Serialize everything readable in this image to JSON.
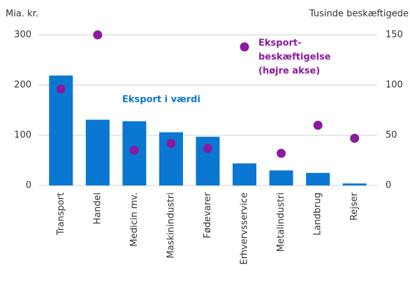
{
  "chart_data": {
    "type": "bar",
    "y_label": "Mia. kr.",
    "y2_label": "Tusinde beskæftigede",
    "categories": [
      "Transport",
      "Handel",
      "Medicin mv.",
      "Maskinindustri",
      "Fødevarer",
      "Erhvervsservice",
      "Metalindustri",
      "Landbrug",
      "Rejser"
    ],
    "series": [
      {
        "type": "bar",
        "color": "#0a78d2",
        "values": [
          219,
          131,
          128,
          106,
          97,
          44,
          30,
          25,
          4
        ]
      },
      {
        "type": "scatter",
        "axis": "y2",
        "color": "#8c1a9f",
        "values": [
          96,
          150,
          35,
          42,
          37,
          138,
          32,
          60,
          47
        ]
      }
    ],
    "annotations": [
      {
        "lines": [
          "Eksport i værdi"
        ],
        "color": "#0a78d2"
      },
      {
        "lines": [
          "Eksport-",
          "beskæftigelse",
          "(højre akse)"
        ],
        "color": "#8c1a9f"
      }
    ],
    "ylim": [
      0,
      300
    ],
    "yticks": [
      0,
      100,
      200,
      300
    ],
    "y2lim": [
      0,
      150
    ],
    "y2ticks": [
      0,
      50,
      100,
      150
    ],
    "grid": true
  }
}
